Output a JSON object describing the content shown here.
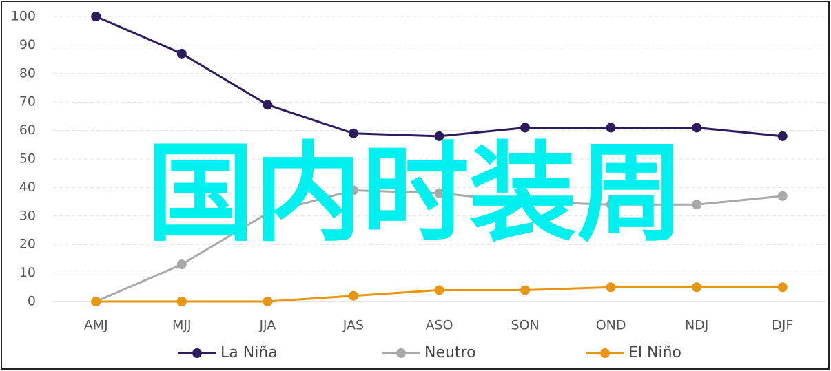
{
  "chart_data": {
    "type": "line",
    "categories": [
      "AMJ",
      "MJJ",
      "JJA",
      "JAS",
      "ASO",
      "SON",
      "OND",
      "NDJ",
      "DJF"
    ],
    "series": [
      {
        "name": "La Niña",
        "color": "#2d1b5e",
        "values": [
          100,
          87,
          69,
          59,
          58,
          61,
          61,
          61,
          58
        ]
      },
      {
        "name": "Neutro",
        "color": "#a9a9a9",
        "values": [
          0,
          13,
          31,
          39,
          38,
          35,
          34,
          34,
          37
        ]
      },
      {
        "name": "El Niño",
        "color": "#e8960f",
        "values": [
          0,
          0,
          0,
          2,
          4,
          4,
          5,
          5,
          5
        ]
      }
    ],
    "ylim": [
      0,
      100
    ],
    "yticks": [
      0,
      10,
      20,
      30,
      40,
      50,
      60,
      70,
      80,
      90,
      100
    ],
    "grid": true,
    "legend": "bottom",
    "annotation": "国内时装周",
    "annotation_color": "#00f0f0"
  }
}
